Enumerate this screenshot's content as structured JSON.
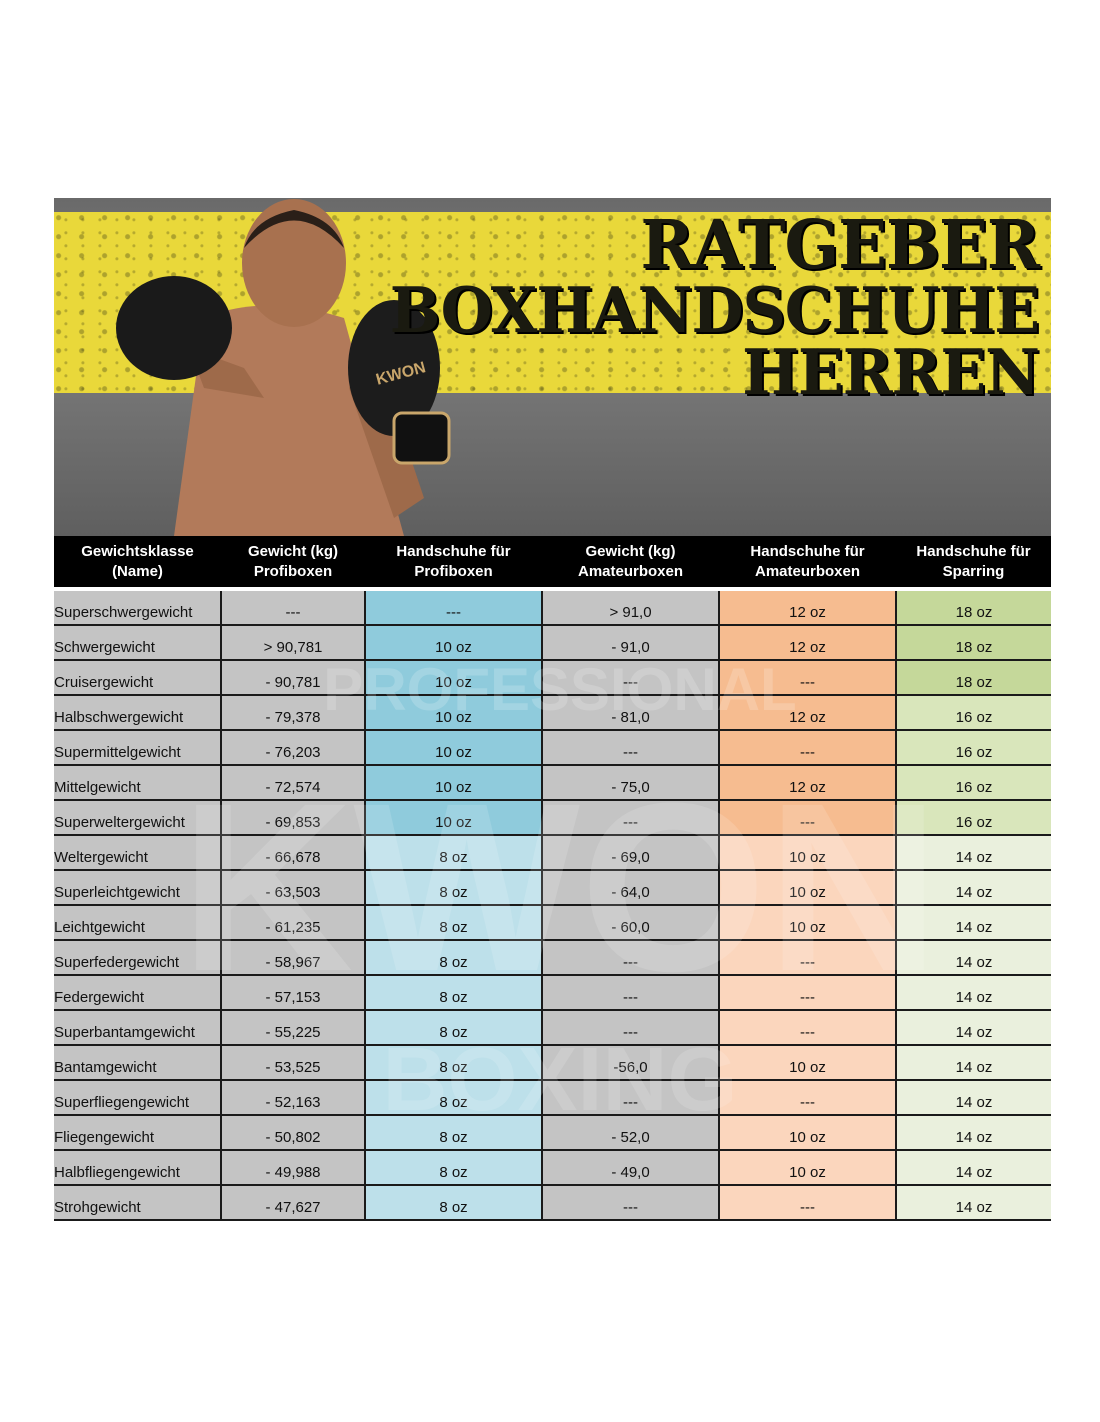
{
  "banner": {
    "title_lines": [
      "RATGEBER",
      "BOXHANDSCHUHE",
      "HERREN"
    ],
    "glove_logo_text": "KWON"
  },
  "watermark": {
    "top": "PROFESSIONAL",
    "middle": "KWON",
    "bottom": "BOXING"
  },
  "table": {
    "headers": [
      [
        "Gewichtsklasse",
        "(Name)"
      ],
      [
        "Gewicht (kg)",
        "Profiboxen"
      ],
      [
        "Handschuhe für",
        "Profiboxen"
      ],
      [
        "Gewicht (kg)",
        "Amateurboxen"
      ],
      [
        "Handschuhe für",
        "Amateurboxen"
      ],
      [
        "Handschuhe für",
        "Sparring"
      ]
    ],
    "rows": [
      [
        "Superschwergewicht",
        "---",
        "---",
        "> 91,0",
        "12 oz",
        "18 oz"
      ],
      [
        "Schwergewicht",
        "> 90,781",
        "10 oz",
        "- 91,0",
        "12 oz",
        "18 oz"
      ],
      [
        "Cruisergewicht",
        "- 90,781",
        "10 oz",
        "---",
        "---",
        "18 oz"
      ],
      [
        "Halbschwergewicht",
        "- 79,378",
        "10 oz",
        "- 81,0",
        "12 oz",
        "16 oz"
      ],
      [
        "Supermittelgewicht",
        "- 76,203",
        "10 oz",
        "---",
        "---",
        "16 oz"
      ],
      [
        "Mittelgewicht",
        "- 72,574",
        "10 oz",
        "- 75,0",
        "12 oz",
        "16 oz"
      ],
      [
        "Superweltergewicht",
        "- 69,853",
        "10 oz",
        "---",
        "---",
        "16 oz"
      ],
      [
        "Weltergewicht",
        "- 66,678",
        "8 oz",
        "- 69,0",
        "10 oz",
        "14 oz"
      ],
      [
        "Superleichtgewicht",
        "- 63,503",
        "8 oz",
        "- 64,0",
        "10 oz",
        "14 oz"
      ],
      [
        "Leichtgewicht",
        "- 61,235",
        "8 oz",
        "- 60,0",
        "10 oz",
        "14 oz"
      ],
      [
        "Superfedergewicht",
        "- 58,967",
        "8 oz",
        "---",
        "---",
        "14 oz"
      ],
      [
        "Federgewicht",
        "- 57,153",
        "8 oz",
        "---",
        "---",
        "14 oz"
      ],
      [
        "Superbantamgewicht",
        "- 55,225",
        "8 oz",
        "---",
        "---",
        "14 oz"
      ],
      [
        "Bantamgewicht",
        "- 53,525",
        "8 oz",
        "-56,0",
        "10 oz",
        "14 oz"
      ],
      [
        "Superfliegengewicht",
        "- 52,163",
        "8 oz",
        "---",
        "---",
        "14 oz"
      ],
      [
        "Fliegengewicht",
        "- 50,802",
        "8 oz",
        "- 52,0",
        "10 oz",
        "14 oz"
      ],
      [
        "Halbfliegengewicht",
        "- 49,988",
        "8 oz",
        "- 49,0",
        "10 oz",
        "14 oz"
      ],
      [
        "Strohgewicht",
        "- 47,627",
        "8 oz",
        "---",
        "---",
        "14 oz"
      ]
    ]
  },
  "colors": {
    "banner_yellow": "#e9d83a",
    "header_bg": "#000000",
    "name_weight_cells": "#c4c4c4",
    "profi_gloves_10oz": "#8fcbdc",
    "profi_gloves_8oz": "#bde0ea",
    "amateur_gloves_12oz": "#f6bc90",
    "amateur_gloves_10oz": "#fbd6bd",
    "sparring_18oz": "#c5d89a",
    "sparring_16oz": "#d9e6bb",
    "sparring_14oz": "#eaf0dd"
  }
}
